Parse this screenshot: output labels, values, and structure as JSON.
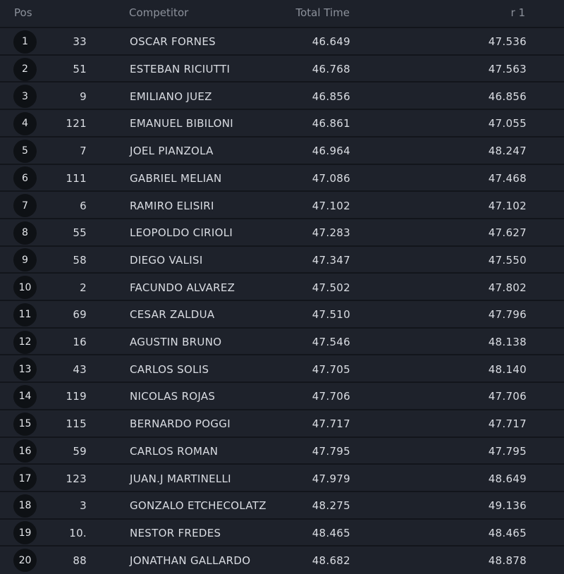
{
  "header": {
    "pos": "Pos",
    "competitor": "Competitor",
    "total_time": "Total Time",
    "r1": "r 1"
  },
  "rows": [
    [
      "1",
      "33",
      "OSCAR FORNES",
      "46.649",
      "47.536"
    ],
    [
      "2",
      "51",
      "ESTEBAN RICIUTTI",
      "46.768",
      "47.563"
    ],
    [
      "3",
      "9",
      "EMILIANO JUEZ",
      "46.856",
      "46.856"
    ],
    [
      "4",
      "121",
      "EMANUEL BIBILONI",
      "46.861",
      "47.055"
    ],
    [
      "5",
      "7",
      "JOEL PIANZOLA",
      "46.964",
      "48.247"
    ],
    [
      "6",
      "111",
      "GABRIEL MELIAN",
      "47.086",
      "47.468"
    ],
    [
      "7",
      "6",
      "RAMIRO ELISIRI",
      "47.102",
      "47.102"
    ],
    [
      "8",
      "55",
      "LEOPOLDO CIRIOLI",
      "47.283",
      "47.627"
    ],
    [
      "9",
      "58",
      "DIEGO VALISI",
      "47.347",
      "47.550"
    ],
    [
      "10",
      "2",
      "FACUNDO ALVAREZ",
      "47.502",
      "47.802"
    ],
    [
      "11",
      "69",
      "CESAR ZALDUA",
      "47.510",
      "47.796"
    ],
    [
      "12",
      "16",
      "AGUSTIN BRUNO",
      "47.546",
      "48.138"
    ],
    [
      "13",
      "43",
      "CARLOS SOLIS",
      "47.705",
      "48.140"
    ],
    [
      "14",
      "119",
      "NICOLAS ROJAS",
      "47.706",
      "47.706"
    ],
    [
      "15",
      "115",
      "BERNARDO POGGI",
      "47.717",
      "47.717"
    ],
    [
      "16",
      "59",
      "CARLOS ROMAN",
      "47.795",
      "47.795"
    ],
    [
      "17",
      "123",
      "JUAN.J MARTINELLI",
      "47.979",
      "48.649"
    ],
    [
      "18",
      "3",
      "GONZALO ETCHECOLATZ",
      "48.275",
      "49.136"
    ],
    [
      "19",
      "10.",
      "NESTOR FREDES",
      "48.465",
      "48.465"
    ],
    [
      "20",
      "88",
      "JONATHAN GALLARDO",
      "48.682",
      "48.878"
    ]
  ]
}
